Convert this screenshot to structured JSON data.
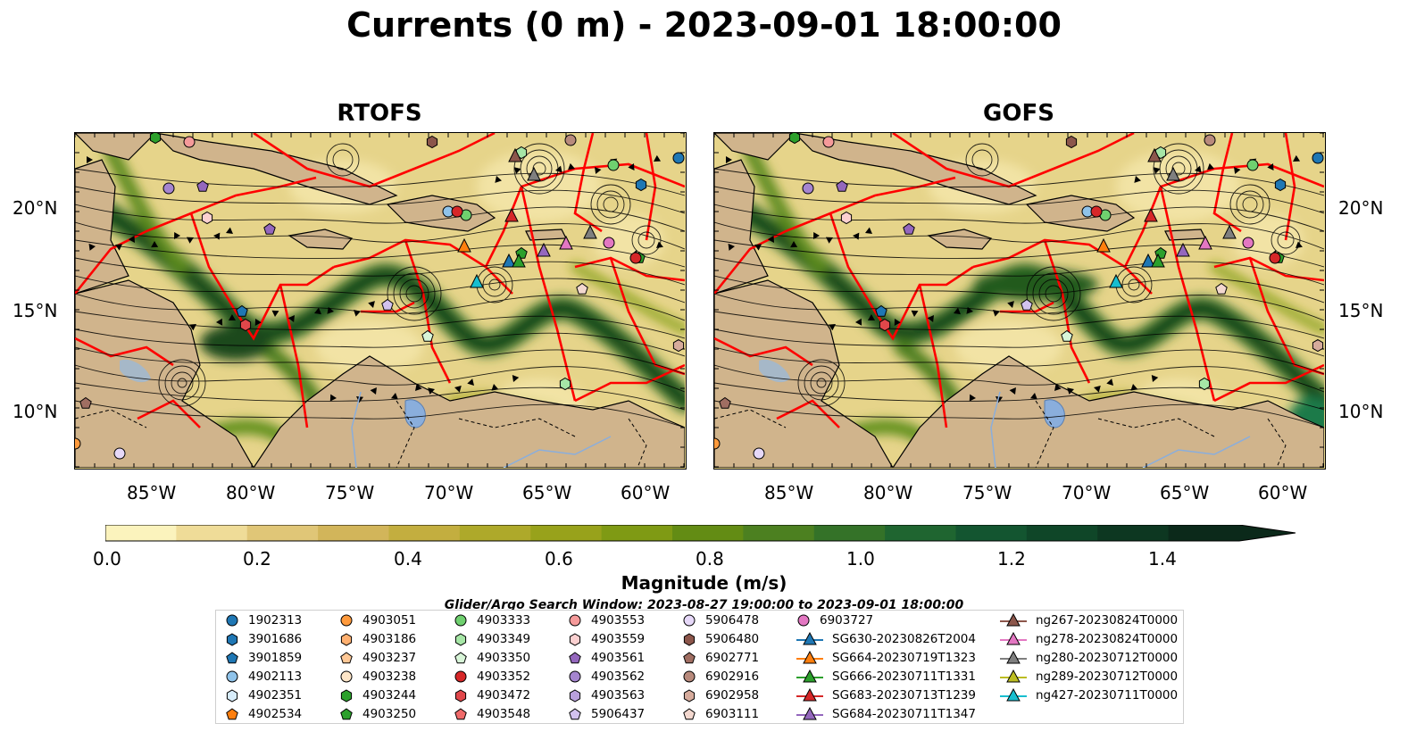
{
  "title": "Currents (0 m) - 2023-09-01 18:00:00",
  "panels": [
    {
      "title": "RTOFS"
    },
    {
      "title": "GOFS"
    }
  ],
  "lat_ticks": [
    "20°N",
    "15°N",
    "10°N"
  ],
  "lon_ticks": [
    "85°W",
    "80°W",
    "75°W",
    "70°W",
    "65°W",
    "60°W"
  ],
  "colorbar": {
    "label": "Magnitude (m/s)",
    "ticks": [
      "0.0",
      "0.2",
      "0.4",
      "0.6",
      "0.8",
      "1.0",
      "1.2",
      "1.4"
    ],
    "colors": [
      "#fbf3bd",
      "#efdc98",
      "#e0c677",
      "#d2b55a",
      "#c3ae3f",
      "#aea92a",
      "#98a21b",
      "#7f9a14",
      "#638c14",
      "#4c8020",
      "#347228",
      "#1f6530",
      "#135530",
      "#0f4628",
      "#0d3721",
      "#0b291a"
    ]
  },
  "legend": {
    "title": "Glider/Argo Search Window: 2023-08-27 19:00:00 to 2023-09-01 18:00:00",
    "items": [
      {
        "label": "1902313",
        "marker": "circle",
        "color": "#1f77b4"
      },
      {
        "label": "3901686",
        "marker": "hexagon",
        "color": "#1f77b4"
      },
      {
        "label": "3901859",
        "marker": "pentagon",
        "color": "#1f77b4"
      },
      {
        "label": "4902113",
        "marker": "circle",
        "color": "#8fc3ea"
      },
      {
        "label": "4902351",
        "marker": "hexagon",
        "color": "#d7ecfa"
      },
      {
        "label": "4902534",
        "marker": "pentagon",
        "color": "#ff7f0e"
      },
      {
        "label": "4903051",
        "marker": "circle",
        "color": "#ff9a3c"
      },
      {
        "label": "4903186",
        "marker": "hexagon",
        "color": "#ffb070"
      },
      {
        "label": "4903237",
        "marker": "pentagon",
        "color": "#ffc896"
      },
      {
        "label": "4903238",
        "marker": "circle",
        "color": "#ffe6c8"
      },
      {
        "label": "4903244",
        "marker": "hexagon",
        "color": "#2ca02c"
      },
      {
        "label": "4903250",
        "marker": "pentagon",
        "color": "#2ca02c"
      },
      {
        "label": "4903333",
        "marker": "circle",
        "color": "#6fd06f"
      },
      {
        "label": "4903349",
        "marker": "hexagon",
        "color": "#a6e6a6"
      },
      {
        "label": "4903350",
        "marker": "pentagon",
        "color": "#d8f5d8"
      },
      {
        "label": "4903352",
        "marker": "circle",
        "color": "#d62728"
      },
      {
        "label": "4903472",
        "marker": "hexagon",
        "color": "#e0474a"
      },
      {
        "label": "4903548",
        "marker": "pentagon",
        "color": "#f06a6a"
      },
      {
        "label": "4903553",
        "marker": "circle",
        "color": "#f59a9a"
      },
      {
        "label": "4903559",
        "marker": "hexagon",
        "color": "#fbd0d0"
      },
      {
        "label": "4903561",
        "marker": "pentagon",
        "color": "#9467bd"
      },
      {
        "label": "4903562",
        "marker": "circle",
        "color": "#a585cf"
      },
      {
        "label": "4903563",
        "marker": "hexagon",
        "color": "#b9a0dc"
      },
      {
        "label": "5906437",
        "marker": "pentagon",
        "color": "#d2c2ee"
      },
      {
        "label": "5906478",
        "marker": "circle",
        "color": "#e6d8f8"
      },
      {
        "label": "5906480",
        "marker": "hexagon",
        "color": "#8c564b"
      },
      {
        "label": "6902771",
        "marker": "pentagon",
        "color": "#a06e62"
      },
      {
        "label": "6902916",
        "marker": "circle",
        "color": "#b88a7c"
      },
      {
        "label": "6902958",
        "marker": "hexagon",
        "color": "#d6ab9c"
      },
      {
        "label": "6903111",
        "marker": "pentagon",
        "color": "#f3d8cf"
      },
      {
        "label": "6903727",
        "marker": "circle",
        "color": "#e377c2"
      },
      {
        "label": "SG630-20230826T2004",
        "marker": "triangle-line",
        "color": "#1f77b4"
      },
      {
        "label": "SG664-20230719T1323",
        "marker": "triangle-line",
        "color": "#ff7f0e"
      },
      {
        "label": "SG666-20230711T1331",
        "marker": "triangle-line",
        "color": "#2ca02c"
      },
      {
        "label": "SG683-20230713T1239",
        "marker": "triangle-line",
        "color": "#d62728"
      },
      {
        "label": "SG684-20230711T1347",
        "marker": "triangle-line",
        "color": "#9467bd"
      },
      {
        "label": "ng267-20230824T0000",
        "marker": "triangle-line",
        "color": "#8c564b"
      },
      {
        "label": "ng278-20230824T0000",
        "marker": "triangle-line",
        "color": "#e377c2"
      },
      {
        "label": "ng280-20230712T0000",
        "marker": "triangle-line",
        "color": "#7f7f7f"
      },
      {
        "label": "ng289-20230712T0000",
        "marker": "triangle-line",
        "color": "#bcbd22"
      },
      {
        "label": "ng427-20230711T0000",
        "marker": "triangle-line",
        "color": "#17becf"
      }
    ]
  }
}
